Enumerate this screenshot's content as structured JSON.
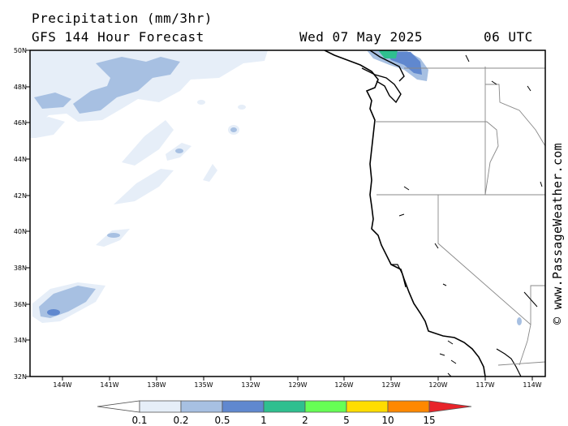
{
  "header": {
    "title": "Precipitation (mm/3hr)",
    "subtitle": "GFS 144 Hour Forecast",
    "valid_date": "Wed 07 May 2025",
    "valid_time": "06 UTC"
  },
  "credit": "© www.PassageWeather.com",
  "axes": {
    "latitude_labels": [
      "50N",
      "48N",
      "46N",
      "44N",
      "42N",
      "40N",
      "38N",
      "36N",
      "34N",
      "32N"
    ],
    "longitude_labels": [
      "144W",
      "141W",
      "138W",
      "135W",
      "132W",
      "129W",
      "126W",
      "123W",
      "120W",
      "117W",
      "114W"
    ]
  },
  "legend": {
    "labels": [
      "0.1",
      "0.2",
      "0.5",
      "1",
      "2",
      "5",
      "10",
      "15"
    ],
    "colors": [
      "#e6eef8",
      "#a7c0e2",
      "#6088cf",
      "#2fbf8f",
      "#66ff55",
      "#ffdd00",
      "#ff8800",
      "#e8242a"
    ]
  },
  "map_colors": {
    "light_precip": "#e6eef8",
    "medium_precip": "#a7c0e2",
    "heavy_precip": "#6088cf",
    "green_precip": "#2fbf8f",
    "coastline": "#000000",
    "borders": "#888888"
  }
}
